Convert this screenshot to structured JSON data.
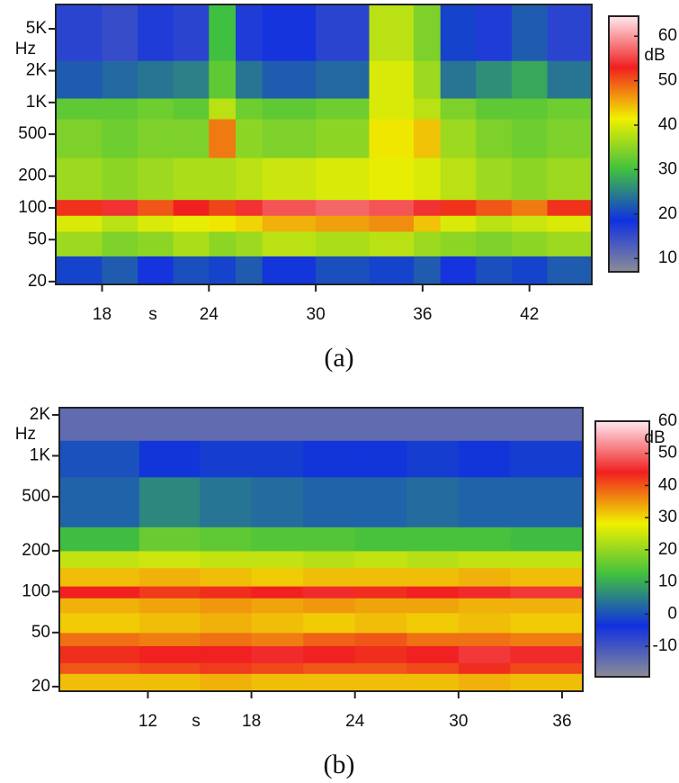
{
  "chart_data": [
    {
      "type": "heatmap",
      "caption": "(a)",
      "x_label": "s",
      "y_label": "Hz",
      "colorbar_label": "dB",
      "log_y": true,
      "xlim": [
        15.4,
        45.5
      ],
      "xticks": [
        18,
        24,
        30,
        36,
        42
      ],
      "ylim": [
        18.8,
        8500
      ],
      "yticks": [
        20,
        50,
        100,
        200,
        500,
        {
          "value": 1000,
          "label": "1K"
        },
        {
          "value": 2000,
          "label": "2K"
        },
        {
          "value": 5000,
          "label": "5K"
        }
      ],
      "clim": [
        7,
        64.5
      ],
      "cticks": [
        10,
        20,
        30,
        40,
        50,
        60
      ],
      "colormap": [
        "#8c8c96",
        "#1030e0",
        "#40c040",
        "#f0f000",
        "#f02020",
        "#ffe8f0"
      ],
      "x_edges": [
        15.4,
        18,
        20,
        22,
        24,
        25.5,
        27,
        30,
        33,
        35.5,
        37,
        39,
        41,
        43,
        45.5
      ],
      "y_edges": [
        18.8,
        35,
        60,
        85,
        120,
        300,
        700,
        1100,
        2500,
        8500
      ],
      "z": [
        [
          20,
          22,
          18,
          21,
          20,
          22,
          19,
          21,
          20,
          22,
          18,
          21,
          20,
          22
        ],
        [
          36,
          34,
          35,
          37,
          35,
          36,
          38,
          37,
          38,
          36,
          35,
          34,
          35,
          36
        ],
        [
          40,
          38,
          40,
          41,
          42,
          43,
          45,
          46,
          47,
          44,
          40,
          38,
          39,
          40
        ],
        [
          52,
          54,
          50,
          53,
          51,
          54,
          56,
          57,
          56,
          54,
          52,
          50,
          48,
          52
        ],
        [
          36,
          35,
          36,
          37,
          37,
          38,
          39,
          40,
          41,
          40,
          38,
          36,
          35,
          36
        ],
        [
          34,
          33,
          34,
          34,
          48,
          35,
          34,
          35,
          42,
          44,
          36,
          34,
          33,
          34
        ],
        [
          32,
          32,
          33,
          32,
          38,
          33,
          32,
          33,
          40,
          38,
          34,
          32,
          32,
          33
        ],
        [
          22,
          23,
          24,
          25,
          32,
          24,
          22,
          23,
          40,
          36,
          24,
          26,
          28,
          24
        ],
        [
          16,
          15,
          17,
          16,
          30,
          17,
          18,
          16,
          38,
          34,
          20,
          17,
          22,
          16
        ]
      ]
    },
    {
      "type": "heatmap",
      "caption": "(b)",
      "x_label": "s",
      "y_label": "Hz",
      "colorbar_label": "dB",
      "log_y": true,
      "xlim": [
        6.87,
        37.2
      ],
      "xticks": [
        12,
        18,
        24,
        30,
        36
      ],
      "ylim": [
        18.5,
        2260
      ],
      "yticks": [
        20,
        50,
        100,
        200,
        500,
        {
          "value": 1000,
          "label": "1K"
        },
        {
          "value": 2000,
          "label": "2K"
        }
      ],
      "clim": [
        -19.5,
        60
      ],
      "cticks": [
        -10,
        0,
        10,
        20,
        30,
        40,
        50,
        60
      ],
      "colormap": [
        "#8c8c96",
        "#1030e0",
        "#40c040",
        "#f0f000",
        "#f02020",
        "#ffe8f0"
      ],
      "x_edges": [
        6.87,
        11.5,
        15,
        18,
        21,
        24,
        27,
        30,
        33,
        37.2
      ],
      "y_edges": [
        18.5,
        25,
        30,
        40,
        50,
        70,
        90,
        110,
        150,
        200,
        300,
        700,
        1300,
        2260
      ],
      "z": [
        [
          32,
          32,
          33,
          32,
          32,
          32,
          32,
          33,
          32
        ],
        [
          40,
          41,
          42,
          41,
          40,
          40,
          41,
          43,
          41
        ],
        [
          43,
          44,
          44,
          45,
          44,
          43,
          44,
          46,
          45
        ],
        [
          38,
          37,
          38,
          37,
          39,
          40,
          38,
          38,
          37
        ],
        [
          31,
          32,
          33,
          32,
          31,
          32,
          31,
          32,
          31
        ],
        [
          33,
          34,
          35,
          34,
          35,
          34,
          34,
          33,
          33
        ],
        [
          44,
          42,
          43,
          44,
          45,
          43,
          44,
          45,
          46
        ],
        [
          32,
          33,
          32,
          31,
          32,
          32,
          32,
          33,
          32
        ],
        [
          24,
          25,
          24,
          24,
          23,
          24,
          23,
          24,
          24
        ],
        [
          12,
          16,
          15,
          14,
          14,
          13,
          13,
          13,
          12
        ],
        [
          2,
          6,
          4,
          3,
          2,
          2,
          3,
          2,
          2
        ],
        [
          0,
          -3,
          -2,
          -2,
          -3,
          -3,
          -2,
          -3,
          -2
        ],
        [
          -14,
          -14,
          -14,
          -14,
          -14,
          -14,
          -14,
          -14,
          -14
        ]
      ]
    }
  ]
}
